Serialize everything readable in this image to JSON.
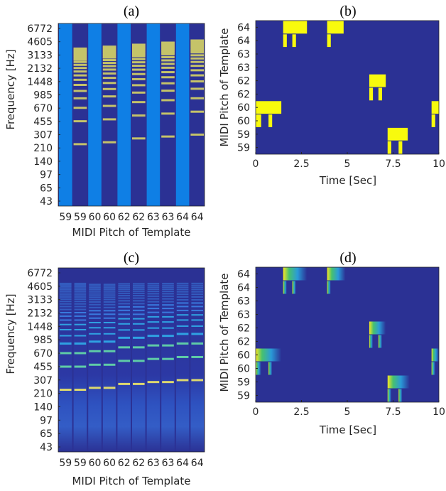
{
  "colors": {
    "background": "#2b3194",
    "highlight": "#f8fa0d",
    "harmonic_a": "#c5c369",
    "band_a": "#0f7fe5",
    "axis": "#262626"
  },
  "chart_data": [
    {
      "id": "a",
      "type": "heatmap",
      "title": "(a)",
      "xlabel": "MIDI Pitch of Template",
      "ylabel": "Frequency [Hz]",
      "categories": [
        "59",
        "59",
        "60",
        "60",
        "62",
        "62",
        "63",
        "63",
        "64",
        "64"
      ],
      "ytick_labels": [
        "6772",
        "4605",
        "3133",
        "2132",
        "1448",
        "985",
        "670",
        "455",
        "307",
        "210",
        "140",
        "97",
        "65",
        "43"
      ],
      "description_values": {
        "template_pitches": [
          59,
          59,
          60,
          60,
          62,
          62,
          63,
          63,
          64,
          64
        ]
      }
    },
    {
      "id": "b",
      "type": "heatmap",
      "title": "(b)",
      "xlabel": "Time [Sec]",
      "ylabel": "MIDI Pitch of Template",
      "xticks": [
        0,
        2.5,
        5,
        7.5,
        10
      ],
      "xlim": [
        0,
        10
      ],
      "ytick_labels": [
        "64",
        "64",
        "63",
        "63",
        "62",
        "62",
        "60",
        "60",
        "59",
        "59"
      ],
      "activations": [
        {
          "row": 0,
          "start": 1.5,
          "end": 2.8
        },
        {
          "row": 0,
          "start": 3.9,
          "end": 4.8
        },
        {
          "row": 1,
          "start": 1.5,
          "end": 1.7
        },
        {
          "row": 1,
          "start": 2.0,
          "end": 2.2
        },
        {
          "row": 1,
          "start": 3.9,
          "end": 4.1
        },
        {
          "row": 4,
          "start": 6.2,
          "end": 7.1
        },
        {
          "row": 5,
          "start": 6.2,
          "end": 6.4
        },
        {
          "row": 5,
          "start": 6.7,
          "end": 6.9
        },
        {
          "row": 6,
          "start": 0.0,
          "end": 1.4
        },
        {
          "row": 6,
          "start": 9.6,
          "end": 10.0
        },
        {
          "row": 7,
          "start": 0.0,
          "end": 0.3
        },
        {
          "row": 7,
          "start": 0.7,
          "end": 0.9
        },
        {
          "row": 7,
          "start": 9.6,
          "end": 9.8
        },
        {
          "row": 8,
          "start": 7.2,
          "end": 8.3
        },
        {
          "row": 9,
          "start": 7.2,
          "end": 7.4
        },
        {
          "row": 9,
          "start": 7.8,
          "end": 8.0
        }
      ]
    },
    {
      "id": "c",
      "type": "heatmap",
      "title": "(c)",
      "xlabel": "MIDI Pitch of Template",
      "ylabel": "Frequency [Hz]",
      "categories": [
        "59",
        "59",
        "60",
        "60",
        "62",
        "62",
        "63",
        "63",
        "64",
        "64"
      ],
      "ytick_labels": [
        "6772",
        "4605",
        "3133",
        "2132",
        "1448",
        "985",
        "670",
        "455",
        "307",
        "210",
        "140",
        "97",
        "65",
        "43"
      ]
    },
    {
      "id": "d",
      "type": "heatmap",
      "title": "(d)",
      "xlabel": "Time [Sec]",
      "ylabel": "MIDI Pitch of Template",
      "xticks": [
        0,
        2.5,
        5,
        7.5,
        10
      ],
      "xlim": [
        0,
        10
      ],
      "ytick_labels": [
        "64",
        "64",
        "63",
        "63",
        "62",
        "62",
        "60",
        "60",
        "59",
        "59"
      ],
      "activations": [
        {
          "row": 0,
          "start": 1.5,
          "end": 2.8
        },
        {
          "row": 0,
          "start": 3.9,
          "end": 4.9
        },
        {
          "row": 1,
          "start": 1.5,
          "end": 1.7
        },
        {
          "row": 1,
          "start": 2.0,
          "end": 2.2
        },
        {
          "row": 1,
          "start": 3.9,
          "end": 4.1
        },
        {
          "row": 4,
          "start": 6.2,
          "end": 7.1
        },
        {
          "row": 5,
          "start": 6.2,
          "end": 6.4
        },
        {
          "row": 5,
          "start": 6.7,
          "end": 6.9
        },
        {
          "row": 6,
          "start": 0.0,
          "end": 1.4
        },
        {
          "row": 6,
          "start": 9.6,
          "end": 10.0
        },
        {
          "row": 7,
          "start": 0.0,
          "end": 0.3
        },
        {
          "row": 7,
          "start": 0.7,
          "end": 0.9
        },
        {
          "row": 7,
          "start": 9.6,
          "end": 9.8
        },
        {
          "row": 8,
          "start": 7.2,
          "end": 8.4
        },
        {
          "row": 9,
          "start": 7.2,
          "end": 7.4
        },
        {
          "row": 9,
          "start": 7.8,
          "end": 8.0
        }
      ]
    }
  ]
}
